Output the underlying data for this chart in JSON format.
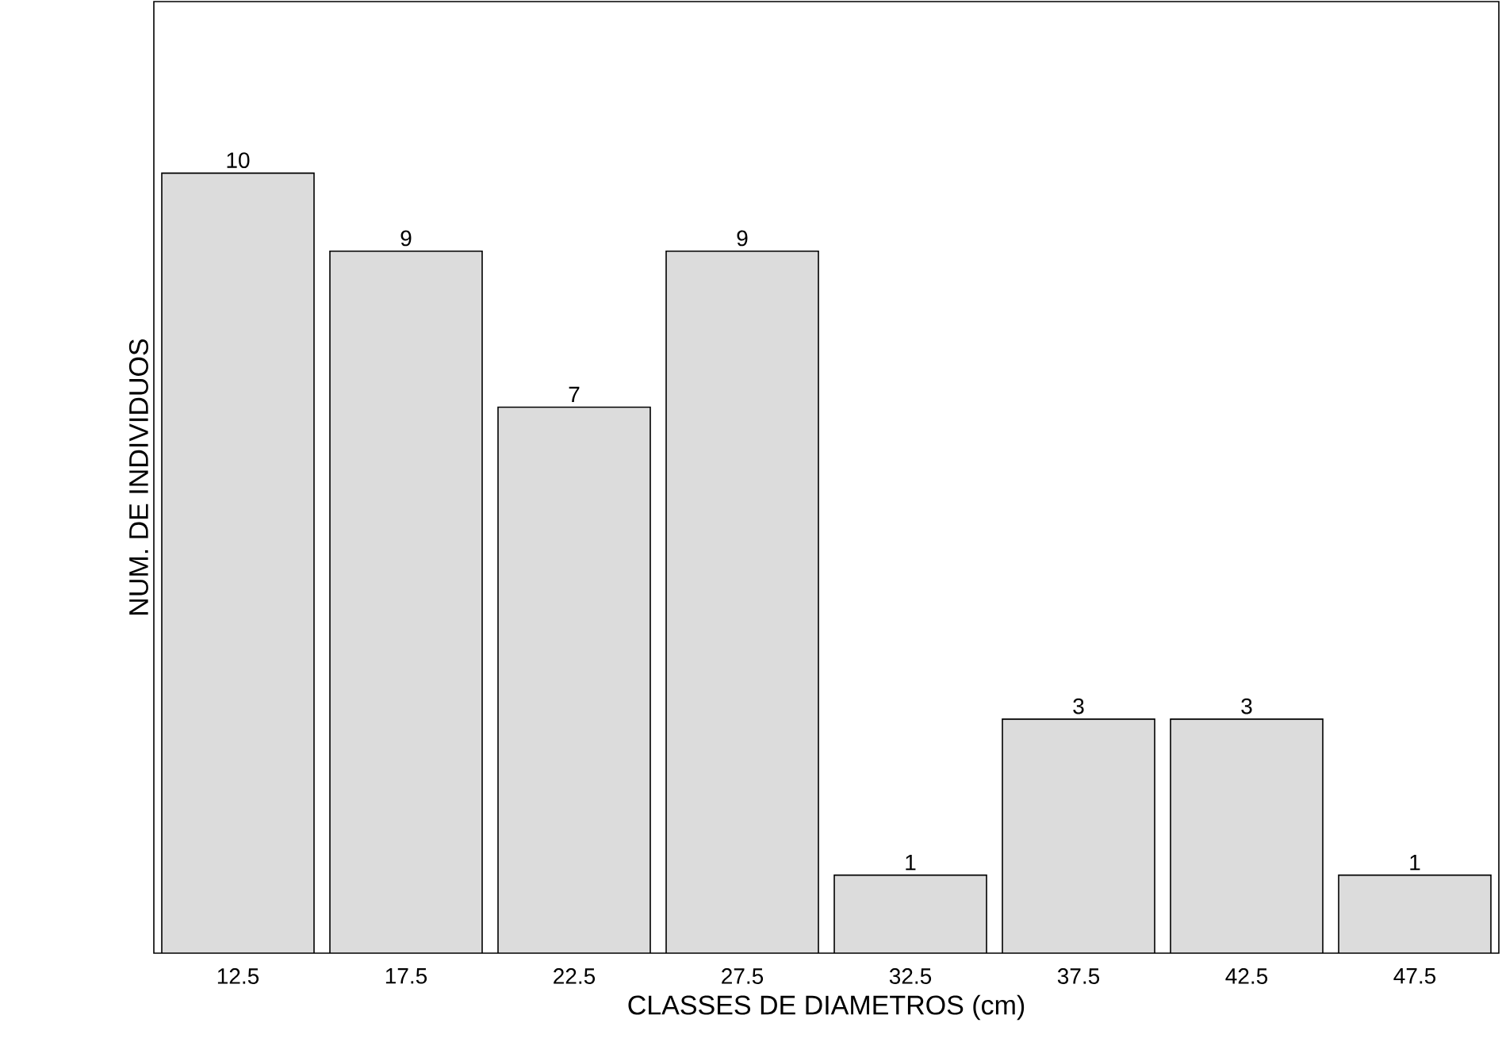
{
  "chart_data": {
    "type": "bar",
    "xlabel": "CLASSES DE DIAMETROS (cm)",
    "ylabel": "NUM. DE INDIVIDUOS",
    "categories": [
      "12.5",
      "17.5",
      "22.5",
      "27.5",
      "32.5",
      "37.5",
      "42.5",
      "47.5"
    ],
    "values": [
      10,
      9,
      7,
      9,
      1,
      3,
      3,
      1
    ],
    "color": "#dcdcdc",
    "data_labels": true
  }
}
